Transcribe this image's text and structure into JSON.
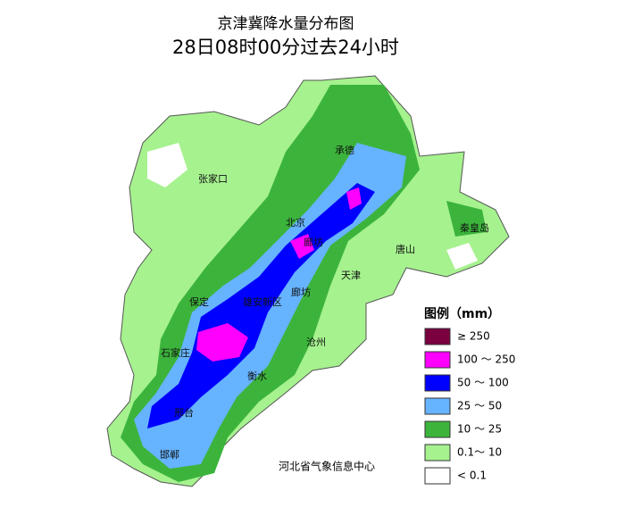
{
  "header": {
    "title": "京津冀降水量分布图",
    "subtitle": "28日08时00分过去24小时"
  },
  "cities": [
    {
      "label": "承德"
    },
    {
      "label": "张家口"
    },
    {
      "label": "秦皇岛"
    },
    {
      "label": "北京"
    },
    {
      "label": "廊坊"
    },
    {
      "label": "唐山"
    },
    {
      "label": "天津"
    },
    {
      "label": "保定"
    },
    {
      "label": "雄安新区"
    },
    {
      "label": "廊坊"
    },
    {
      "label": "沧州"
    },
    {
      "label": "石家庄"
    },
    {
      "label": "衡水"
    },
    {
      "label": "邢台"
    },
    {
      "label": "邯郸"
    }
  ],
  "legend": {
    "title": "图例（mm）",
    "items": [
      {
        "label": "≥ 250",
        "color": "#7b0040"
      },
      {
        "label": "100 ～ 250",
        "color": "#ff00ff"
      },
      {
        "label": "50 ～ 100",
        "color": "#0000ff"
      },
      {
        "label": "25 ～ 50",
        "color": "#66b3ff"
      },
      {
        "label": "10 ～ 25",
        "color": "#3cb43c"
      },
      {
        "label": "0.1～ 10",
        "color": "#a6f28f"
      },
      {
        "label": "< 0.1",
        "color": "#ffffff"
      }
    ]
  },
  "credit": "河北省气象信息中心"
}
